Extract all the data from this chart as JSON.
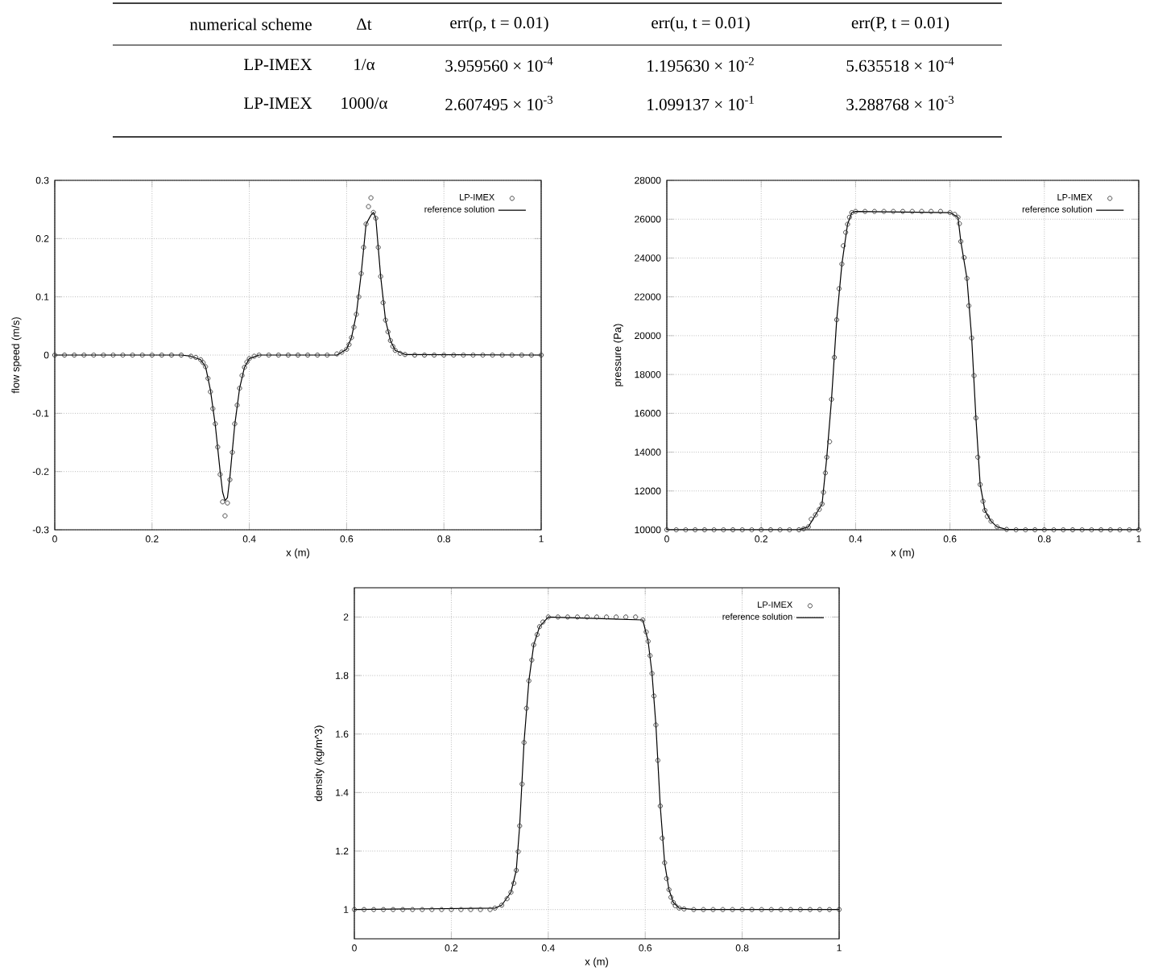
{
  "chart_data": [
    {
      "type": "other",
      "annotations": [
        "numerical scheme",
        "Δt",
        "err(ρ, t = 0.01)",
        "err(u, t = 0.01)",
        "err(P, t = 0.01)",
        "LP-IMEX",
        "1/α",
        "3.959560 × 10$^{-4}$",
        "1.195630 × 10$^{-2}$",
        "5.635518 × 10$^{-4}$",
        "LP-IMEX",
        "1000/α",
        "2.607495 × 10$^{-3}$",
        "1.099137 × 10$^{-1}$",
        "3.288768 × 10$^{-3}$"
      ]
    },
    {
      "type": "line",
      "xlabel": "x (m)",
      "ylabel": "flow speed (m/s)",
      "xlim": [
        0,
        1
      ],
      "ylim": [
        -0.3,
        0.3
      ],
      "xticks": [
        0,
        0.2,
        0.4,
        0.6,
        0.8,
        1
      ],
      "yticks": [
        -0.3,
        -0.2,
        -0.1,
        0,
        0.1,
        0.2,
        0.3
      ],
      "grid": true,
      "legend": "top right",
      "series": [
        {
          "name": "LP-IMEX",
          "type": "scatter",
          "marker": "circle",
          "color": "#333333",
          "x": [
            0,
            0.02,
            0.04,
            0.06,
            0.08,
            0.1,
            0.12,
            0.14,
            0.16,
            0.18,
            0.2,
            0.22,
            0.24,
            0.26,
            0.28,
            0.29,
            0.3,
            0.305,
            0.31,
            0.315,
            0.32,
            0.325,
            0.33,
            0.335,
            0.34,
            0.345,
            0.35,
            0.355,
            0.36,
            0.365,
            0.37,
            0.375,
            0.38,
            0.385,
            0.39,
            0.395,
            0.4,
            0.41,
            0.42,
            0.44,
            0.46,
            0.48,
            0.5,
            0.52,
            0.54,
            0.56,
            0.58,
            0.59,
            0.6,
            0.605,
            0.61,
            0.615,
            0.62,
            0.625,
            0.63,
            0.635,
            0.64,
            0.645,
            0.65,
            0.655,
            0.66,
            0.665,
            0.67,
            0.675,
            0.68,
            0.685,
            0.69,
            0.695,
            0.7,
            0.71,
            0.72,
            0.74,
            0.76,
            0.78,
            0.8,
            0.82,
            0.84,
            0.86,
            0.88,
            0.9,
            0.92,
            0.94,
            0.96,
            0.98,
            1
          ],
          "values": [
            0,
            0,
            0,
            0,
            0,
            0,
            0,
            0,
            0,
            0,
            0,
            0,
            0,
            0,
            -0.002,
            -0.004,
            -0.008,
            -0.013,
            -0.02,
            -0.04,
            -0.063,
            -0.092,
            -0.118,
            -0.158,
            -0.205,
            -0.252,
            -0.276,
            -0.254,
            -0.214,
            -0.167,
            -0.118,
            -0.086,
            -0.057,
            -0.035,
            -0.021,
            -0.012,
            -0.006,
            -0.002,
            0,
            0,
            0,
            0,
            0,
            0,
            0,
            0,
            0.002,
            0.005,
            0.01,
            0.018,
            0.03,
            0.048,
            0.07,
            0.1,
            0.14,
            0.185,
            0.225,
            0.255,
            0.27,
            0.245,
            0.235,
            0.185,
            0.135,
            0.09,
            0.06,
            0.04,
            0.025,
            0.015,
            0.008,
            0.003,
            0.001,
            0,
            0,
            0,
            0,
            0,
            0,
            0,
            0,
            0,
            0,
            0,
            0,
            0,
            0
          ]
        },
        {
          "name": "reference solution",
          "type": "line",
          "color": "#000000",
          "x": [
            0,
            0.26,
            0.28,
            0.3,
            0.31,
            0.32,
            0.33,
            0.34,
            0.345,
            0.35,
            0.355,
            0.36,
            0.37,
            0.38,
            0.39,
            0.4,
            0.42,
            0.58,
            0.6,
            0.61,
            0.62,
            0.63,
            0.64,
            0.65,
            0.655,
            0.66,
            0.67,
            0.68,
            0.69,
            0.7,
            0.72,
            1
          ],
          "values": [
            0,
            0,
            -0.002,
            -0.008,
            -0.02,
            -0.06,
            -0.12,
            -0.2,
            -0.235,
            -0.25,
            -0.245,
            -0.21,
            -0.12,
            -0.057,
            -0.021,
            -0.006,
            0,
            0,
            0.01,
            0.03,
            0.07,
            0.14,
            0.225,
            0.24,
            0.245,
            0.235,
            0.135,
            0.06,
            0.025,
            0.008,
            0.001,
            0
          ]
        }
      ]
    },
    {
      "type": "line",
      "xlabel": "x (m)",
      "ylabel": "pressure (Pa)",
      "xlim": [
        0,
        1
      ],
      "ylim": [
        10000,
        28000
      ],
      "xticks": [
        0,
        0.2,
        0.4,
        0.6,
        0.8,
        1
      ],
      "yticks": [
        10000,
        12000,
        14000,
        16000,
        18000,
        20000,
        22000,
        24000,
        26000,
        28000
      ],
      "grid": true,
      "legend": "top right",
      "series": [
        {
          "name": "LP-IMEX",
          "type": "scatter",
          "marker": "circle",
          "color": "#333333",
          "x": [
            0,
            0.02,
            0.04,
            0.06,
            0.08,
            0.1,
            0.12,
            0.14,
            0.16,
            0.18,
            0.2,
            0.22,
            0.24,
            0.26,
            0.28,
            0.29,
            0.3,
            0.306,
            0.315,
            0.323,
            0.329,
            0.332,
            0.336,
            0.339,
            0.345,
            0.349,
            0.355,
            0.36,
            0.365,
            0.371,
            0.374,
            0.379,
            0.383,
            0.387,
            0.392,
            0.4,
            0.42,
            0.44,
            0.46,
            0.48,
            0.5,
            0.52,
            0.54,
            0.56,
            0.58,
            0.6,
            0.61,
            0.617,
            0.62,
            0.623,
            0.63,
            0.636,
            0.64,
            0.646,
            0.651,
            0.655,
            0.659,
            0.664,
            0.67,
            0.674,
            0.679,
            0.687,
            0.7,
            0.72,
            0.74,
            0.76,
            0.78,
            0.8,
            0.82,
            0.84,
            0.86,
            0.88,
            0.9,
            0.92,
            0.94,
            0.96,
            0.98,
            1
          ],
          "values": [
            10000,
            10000,
            10000,
            10000,
            10000,
            10000,
            10000,
            10000,
            10000,
            10000,
            10000,
            10000,
            10000,
            10000,
            10000,
            10050,
            10150,
            10550,
            10770,
            11050,
            11330,
            11930,
            12930,
            13740,
            14540,
            16720,
            18880,
            20820,
            22420,
            23690,
            24630,
            25320,
            25740,
            26100,
            26340,
            26400,
            26400,
            26400,
            26400,
            26400,
            26400,
            26400,
            26400,
            26400,
            26400,
            26340,
            26250,
            26100,
            25770,
            24850,
            24020,
            22950,
            21540,
            19880,
            17940,
            15760,
            13740,
            12330,
            11470,
            11000,
            10690,
            10440,
            10150,
            10020,
            10000,
            10000,
            10000,
            10000,
            10000,
            10000,
            10000,
            10000,
            10000,
            10000,
            10000,
            10000,
            10000,
            10000
          ]
        },
        {
          "name": "reference solution",
          "type": "line",
          "color": "#000000",
          "x": [
            0,
            0.28,
            0.3,
            0.315,
            0.329,
            0.339,
            0.349,
            0.36,
            0.371,
            0.383,
            0.392,
            0.4,
            0.6,
            0.617,
            0.623,
            0.636,
            0.646,
            0.655,
            0.664,
            0.674,
            0.687,
            0.7,
            0.72,
            1
          ],
          "values": [
            10000,
            10000,
            10150,
            10770,
            11330,
            13740,
            16720,
            20820,
            23690,
            25740,
            26340,
            26400,
            26340,
            26100,
            24850,
            22950,
            19880,
            15760,
            12330,
            11000,
            10440,
            10150,
            10020,
            10000
          ]
        }
      ]
    },
    {
      "type": "line",
      "xlabel": "x (m)",
      "ylabel": "density (kg/m^3)",
      "xlim": [
        0,
        1
      ],
      "ylim": [
        0.9,
        2.1
      ],
      "xticks": [
        0,
        0.2,
        0.4,
        0.6,
        0.8,
        1
      ],
      "yticks": [
        1,
        1.2,
        1.4,
        1.6,
        1.8,
        2
      ],
      "grid": true,
      "legend": "top right",
      "series": [
        {
          "name": "LP-IMEX",
          "type": "scatter",
          "marker": "circle",
          "color": "#333333",
          "x": [
            0,
            0.02,
            0.04,
            0.06,
            0.08,
            0.1,
            0.12,
            0.14,
            0.16,
            0.18,
            0.2,
            0.22,
            0.24,
            0.26,
            0.28,
            0.29,
            0.304,
            0.315,
            0.323,
            0.329,
            0.334,
            0.338,
            0.341,
            0.346,
            0.35,
            0.355,
            0.36,
            0.366,
            0.37,
            0.377,
            0.382,
            0.389,
            0.4,
            0.42,
            0.44,
            0.46,
            0.48,
            0.5,
            0.52,
            0.54,
            0.56,
            0.58,
            0.595,
            0.602,
            0.606,
            0.61,
            0.614,
            0.618,
            0.622,
            0.626,
            0.631,
            0.635,
            0.64,
            0.644,
            0.649,
            0.653,
            0.658,
            0.662,
            0.67,
            0.68,
            0.7,
            0.72,
            0.74,
            0.76,
            0.78,
            0.8,
            0.82,
            0.84,
            0.86,
            0.88,
            0.9,
            0.92,
            0.94,
            0.96,
            0.98,
            1
          ],
          "values": [
            1,
            1,
            1,
            1,
            1,
            1,
            1,
            1,
            1,
            1,
            1,
            1,
            1,
            1,
            1,
            1.005,
            1.015,
            1.037,
            1.059,
            1.09,
            1.134,
            1.198,
            1.286,
            1.429,
            1.571,
            1.688,
            1.782,
            1.853,
            1.905,
            1.94,
            1.967,
            1.983,
            2,
            2,
            2,
            2,
            2,
            2,
            2,
            2,
            2,
            2,
            1.99,
            1.949,
            1.917,
            1.868,
            1.807,
            1.73,
            1.631,
            1.51,
            1.354,
            1.244,
            1.16,
            1.106,
            1.068,
            1.042,
            1.024,
            1.013,
            1.005,
            1.002,
            1,
            1,
            1,
            1,
            1,
            1,
            1,
            1,
            1,
            1,
            1,
            1,
            1,
            1,
            1,
            1
          ]
        },
        {
          "name": "reference solution",
          "type": "line",
          "color": "#000000",
          "x": [
            0,
            0.29,
            0.304,
            0.323,
            0.334,
            0.341,
            0.35,
            0.36,
            0.37,
            0.382,
            0.4,
            0.595,
            0.606,
            0.614,
            0.622,
            0.631,
            0.64,
            0.649,
            0.658,
            0.67,
            0.7,
            1
          ],
          "values": [
            1,
            1.005,
            1.015,
            1.059,
            1.134,
            1.286,
            1.571,
            1.782,
            1.905,
            1.967,
            2,
            1.99,
            1.917,
            1.807,
            1.631,
            1.354,
            1.16,
            1.068,
            1.024,
            1.005,
            1,
            1
          ]
        }
      ]
    }
  ]
}
